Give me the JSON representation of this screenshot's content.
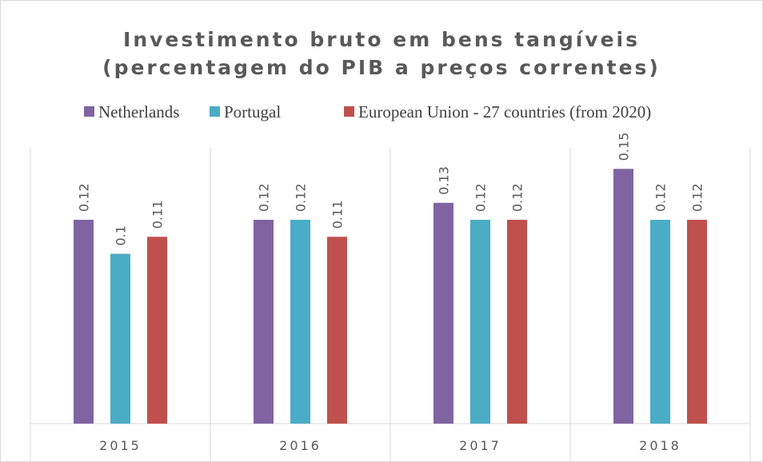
{
  "chart_data": {
    "type": "bar",
    "title": [
      "Investimento bruto em bens tangíveis",
      "(percentagem do PIB a preços correntes)"
    ],
    "categories": [
      "2015",
      "2016",
      "2017",
      "2018"
    ],
    "series": [
      {
        "name": "Netherlands",
        "color": "#8064a2",
        "values": [
          0.12,
          0.12,
          0.13,
          0.15
        ]
      },
      {
        "name": "Portugal",
        "color": "#4bacc6",
        "values": [
          0.1,
          0.12,
          0.12,
          0.12
        ]
      },
      {
        "name": "European Union - 27 countries (from 2020)",
        "color": "#c0504d",
        "values": [
          0.11,
          0.11,
          0.12,
          0.12
        ]
      }
    ],
    "ylim": [
      0,
      0.16
    ],
    "legend": "top"
  }
}
